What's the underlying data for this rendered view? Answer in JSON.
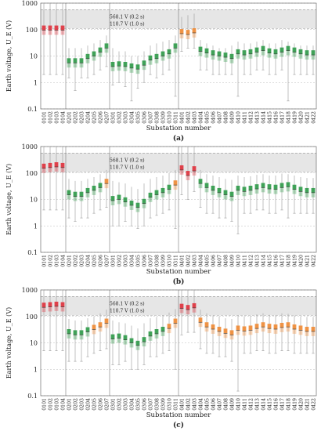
{
  "figure": {
    "labels": [
      "(a)",
      "(b)",
      "(c)"
    ]
  },
  "colors": {
    "red": "#e0303b",
    "orange": "#f08a33",
    "green": "#2e9a48",
    "band": "#e6e6e6"
  },
  "chart_data": [
    {
      "type": "box",
      "panel_label": "(a)",
      "title": "",
      "xlabel": "Substation number",
      "ylabel": "Earth voltage, U_E (V)",
      "yscale": "log",
      "ylim": [
        0.1,
        1000
      ],
      "yticks": [
        "0.1",
        "1",
        "10",
        "100",
        "1000"
      ],
      "thresholds": [
        {
          "label": "568.1 V (0.2 s)",
          "value": 568.1
        },
        {
          "label": "110.7 V (1.0 s)",
          "value": 110.7
        }
      ],
      "categories": [
        "0101",
        "0102",
        "0103",
        "0104",
        "0201",
        "0202",
        "0203",
        "0204",
        "0205",
        "0206",
        "0207",
        "0301",
        "0302",
        "0303",
        "0304",
        "0305",
        "0306",
        "0307",
        "0308",
        "0309",
        "0310",
        "0311",
        "0401",
        "0402",
        "0403",
        "0404",
        "0405",
        "0406",
        "0407",
        "0408",
        "0409",
        "0410",
        "0411",
        "0412",
        "0413",
        "0414",
        "0415",
        "0416",
        "0417",
        "0418",
        "0419",
        "0420",
        "0421",
        "0422"
      ],
      "median": [
        95,
        95,
        95,
        95,
        5.5,
        5.5,
        5.5,
        8,
        10,
        14,
        20,
        4,
        4.2,
        4,
        3.5,
        3.2,
        4.5,
        7,
        8,
        10,
        12,
        20,
        70,
        65,
        75,
        15,
        13,
        11,
        10,
        9,
        8,
        12,
        11,
        12,
        14,
        16,
        13,
        12,
        14,
        16,
        14,
        12,
        11,
        11
      ],
      "whisker_low": [
        2,
        2,
        2,
        2,
        1.5,
        0.5,
        1.5,
        1.5,
        2,
        3,
        4,
        0.8,
        1,
        0.7,
        0.2,
        0.6,
        1,
        2,
        1.5,
        2,
        3,
        0.3,
        15,
        20,
        20,
        3,
        3,
        2,
        2,
        2,
        2,
        0.3,
        2,
        2,
        3,
        3,
        2,
        2,
        3,
        0.2,
        2,
        2,
        2,
        2
      ],
      "whisker_high": [
        1500,
        1500,
        1500,
        1500,
        20,
        20,
        20,
        25,
        30,
        40,
        60,
        20,
        15,
        15,
        10,
        10,
        15,
        25,
        30,
        35,
        40,
        60,
        300,
        350,
        400,
        40,
        30,
        25,
        20,
        20,
        25,
        35,
        30,
        30,
        35,
        40,
        30,
        30,
        40,
        35,
        30,
        25,
        25,
        25
      ],
      "color_group": [
        "red",
        "red",
        "red",
        "red",
        "green",
        "green",
        "green",
        "green",
        "green",
        "green",
        "green",
        "green",
        "green",
        "green",
        "green",
        "green",
        "green",
        "green",
        "green",
        "green",
        "green",
        "green",
        "orange",
        "orange",
        "orange",
        "green",
        "green",
        "green",
        "green",
        "green",
        "green",
        "green",
        "green",
        "green",
        "green",
        "green",
        "green",
        "green",
        "green",
        "green",
        "green",
        "green",
        "green",
        "green"
      ]
    },
    {
      "type": "box",
      "panel_label": "(b)",
      "title": "",
      "xlabel": "Substation number",
      "ylabel": "Earth voltage, U_E (V)",
      "yscale": "log",
      "ylim": [
        0.1,
        1000
      ],
      "yticks": [
        "0.1",
        "1",
        "10",
        "100",
        "1000"
      ],
      "thresholds": [
        {
          "label": "568.1 V (0.2 s)",
          "value": 568.1
        },
        {
          "label": "110.7 V (1.0 s)",
          "value": 110.7
        }
      ],
      "categories": [
        "0101",
        "0102",
        "0103",
        "0104",
        "0201",
        "0202",
        "0203",
        "0204",
        "0205",
        "0206",
        "0207",
        "0301",
        "0302",
        "0303",
        "0304",
        "0305",
        "0306",
        "0307",
        "0308",
        "0309",
        "0310",
        "0311",
        "0401",
        "0402",
        "0403",
        "0404",
        "0405",
        "0406",
        "0407",
        "0408",
        "0409",
        "0410",
        "0411",
        "0412",
        "0413",
        "0414",
        "0415",
        "0416",
        "0417",
        "0418",
        "0419",
        "0420",
        "0421",
        "0422"
      ],
      "median": [
        150,
        160,
        170,
        160,
        15,
        13,
        13,
        18,
        22,
        28,
        40,
        9,
        10,
        8,
        6,
        5,
        7,
        12,
        15,
        18,
        24,
        35,
        130,
        80,
        120,
        40,
        28,
        22,
        18,
        15,
        13,
        22,
        20,
        22,
        25,
        28,
        25,
        24,
        28,
        30,
        24,
        20,
        18,
        18
      ],
      "whisker_low": [
        4,
        4,
        4,
        4,
        2,
        1.5,
        2,
        2,
        3,
        4,
        5,
        1,
        1,
        1.5,
        1,
        0.8,
        1,
        2,
        2.5,
        3,
        4,
        0.8,
        15,
        10,
        20,
        5,
        3,
        3,
        2,
        2,
        1.5,
        0.5,
        3,
        3,
        4,
        4,
        3,
        3,
        4,
        2,
        3,
        3,
        3,
        3
      ],
      "whisker_high": [
        2500,
        2500,
        2500,
        2500,
        60,
        50,
        50,
        60,
        70,
        90,
        130,
        50,
        45,
        40,
        30,
        25,
        40,
        60,
        70,
        80,
        100,
        130,
        1500,
        1000,
        1500,
        130,
        90,
        80,
        70,
        60,
        55,
        80,
        70,
        75,
        85,
        90,
        80,
        80,
        95,
        90,
        80,
        70,
        65,
        65
      ],
      "color_group": [
        "red",
        "red",
        "red",
        "red",
        "green",
        "green",
        "green",
        "green",
        "green",
        "green",
        "orange",
        "green",
        "green",
        "green",
        "green",
        "green",
        "green",
        "green",
        "green",
        "green",
        "green",
        "orange",
        "red",
        "red",
        "red",
        "green",
        "green",
        "green",
        "green",
        "green",
        "green",
        "green",
        "green",
        "green",
        "green",
        "green",
        "green",
        "green",
        "green",
        "green",
        "green",
        "green",
        "green",
        "green"
      ]
    },
    {
      "type": "box",
      "panel_label": "(c)",
      "title": "",
      "xlabel": "Substation number",
      "ylabel": "Earth voltage, U_E (V)",
      "yscale": "log",
      "ylim": [
        0.1,
        1000
      ],
      "yticks": [
        "0.1",
        "1",
        "10",
        "100",
        "1000"
      ],
      "thresholds": [
        {
          "label": "568.1 V (0.2 s)",
          "value": 568.1
        },
        {
          "label": "110.7 V (1.0 s)",
          "value": 110.7
        }
      ],
      "categories": [
        "0101",
        "0102",
        "0103",
        "0104",
        "0201",
        "0202",
        "0203",
        "0204",
        "0205",
        "0206",
        "0207",
        "0301",
        "0302",
        "0303",
        "0304",
        "0305",
        "0306",
        "0307",
        "0308",
        "0309",
        "0310",
        "0311",
        "0401",
        "0402",
        "0403",
        "0404",
        "0405",
        "0406",
        "0407",
        "0408",
        "0409",
        "0410",
        "0411",
        "0412",
        "0413",
        "0414",
        "0415",
        "0416",
        "0417",
        "0418",
        "0419",
        "0420",
        "0421",
        "0422"
      ],
      "median": [
        220,
        230,
        240,
        230,
        22,
        20,
        20,
        26,
        32,
        40,
        55,
        14,
        15,
        13,
        10,
        8,
        11,
        18,
        22,
        27,
        35,
        55,
        200,
        180,
        210,
        60,
        40,
        33,
        27,
        23,
        20,
        30,
        28,
        30,
        35,
        40,
        35,
        33,
        38,
        40,
        33,
        30,
        27,
        27
      ],
      "whisker_low": [
        5,
        5,
        5,
        5,
        2,
        2,
        2,
        3,
        4,
        5,
        6,
        1.5,
        1.5,
        2,
        1,
        1,
        1.5,
        3,
        3,
        4,
        5,
        1,
        20,
        25,
        25,
        6,
        4,
        4,
        3,
        3,
        2,
        0.15,
        4,
        4,
        5,
        5,
        4,
        4,
        5,
        5,
        4,
        4,
        4,
        4
      ],
      "whisker_high": [
        3500,
        3500,
        3500,
        3500,
        80,
        70,
        70,
        85,
        100,
        130,
        180,
        70,
        60,
        55,
        45,
        35,
        55,
        85,
        95,
        110,
        140,
        190,
        2000,
        2000,
        2000,
        180,
        130,
        110,
        100,
        85,
        80,
        110,
        100,
        105,
        120,
        130,
        115,
        110,
        130,
        125,
        110,
        100,
        95,
        95
      ],
      "color_group": [
        "red",
        "red",
        "red",
        "red",
        "green",
        "green",
        "green",
        "green",
        "orange",
        "orange",
        "orange",
        "green",
        "green",
        "green",
        "green",
        "green",
        "green",
        "green",
        "green",
        "green",
        "orange",
        "orange",
        "red",
        "red",
        "red",
        "orange",
        "orange",
        "orange",
        "orange",
        "orange",
        "orange",
        "orange",
        "orange",
        "orange",
        "orange",
        "orange",
        "orange",
        "orange",
        "orange",
        "orange",
        "orange",
        "orange",
        "orange",
        "orange"
      ]
    }
  ]
}
